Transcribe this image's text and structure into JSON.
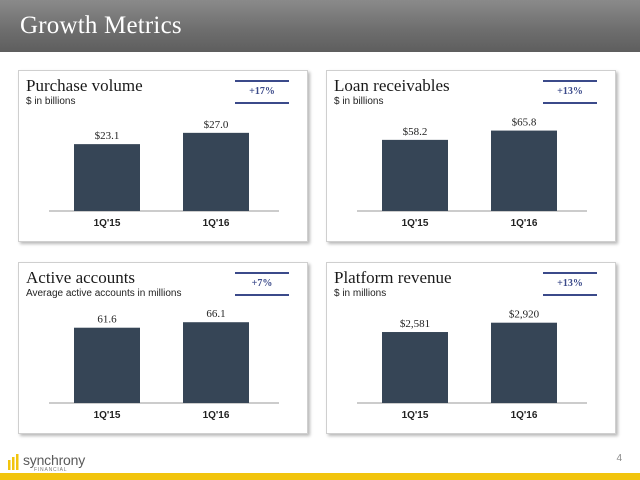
{
  "header": {
    "title": "Growth Metrics"
  },
  "colors": {
    "bar": "#364556",
    "badge": "#3b4a8a",
    "accent": "#f2c40d"
  },
  "chart_data": [
    {
      "type": "bar",
      "title": "Purchase volume",
      "subtitle": "$ in billions",
      "badge": "+17%",
      "categories": [
        "1Q'15",
        "1Q'16"
      ],
      "values": [
        23.1,
        27.0
      ],
      "value_labels": [
        "$23.1",
        "$27.0"
      ],
      "ylim": [
        0,
        38
      ]
    },
    {
      "type": "bar",
      "title": "Loan receivables",
      "subtitle": "$ in billions",
      "badge": "+13%",
      "categories": [
        "1Q'15",
        "1Q'16"
      ],
      "values": [
        58.2,
        65.8
      ],
      "value_labels": [
        "$58.2",
        "$65.8"
      ],
      "ylim": [
        0,
        90
      ]
    },
    {
      "type": "bar",
      "title": "Active accounts",
      "subtitle": "Average active accounts in millions",
      "badge": "+7%",
      "categories": [
        "1Q'15",
        "1Q'16"
      ],
      "values": [
        61.6,
        66.1
      ],
      "value_labels": [
        "61.6",
        "66.1"
      ],
      "ylim": [
        0,
        90
      ]
    },
    {
      "type": "bar",
      "title": "Platform revenue",
      "subtitle": "$ in millions",
      "badge": "+13%",
      "categories": [
        "1Q'15",
        "1Q'16"
      ],
      "values": [
        2581,
        2920
      ],
      "value_labels": [
        "$2,581",
        "$2,920"
      ],
      "ylim": [
        0,
        4000
      ]
    }
  ],
  "footer": {
    "logo_text": "synchrony",
    "logo_tagline": "FINANCIAL",
    "page_number": "4"
  }
}
